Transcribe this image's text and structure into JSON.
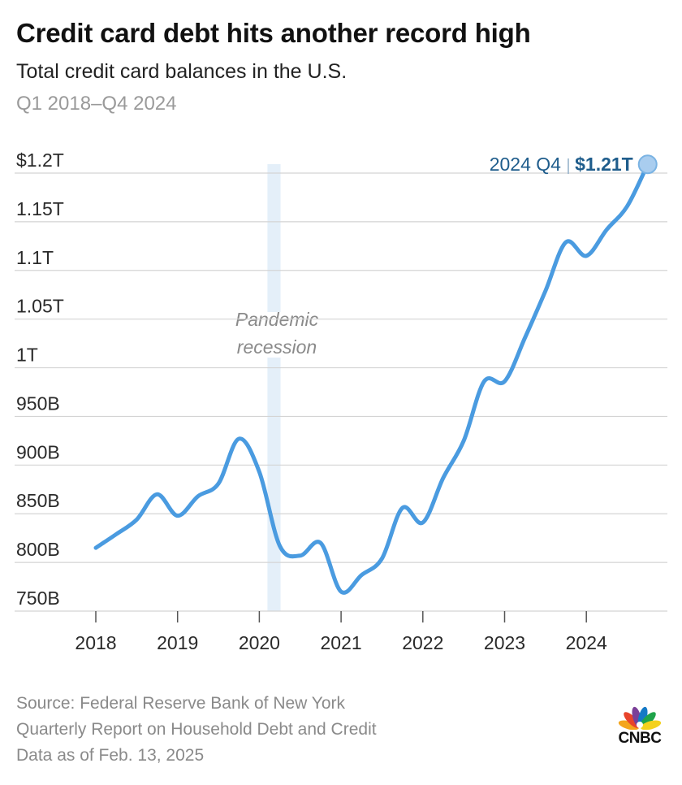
{
  "header": {
    "title": "Credit card debt hits another record high",
    "subtitle": "Total credit card balances in the U.S.",
    "range": "Q1 2018–Q4 2024"
  },
  "footer": {
    "source": "Source: Federal Reserve Bank of New York",
    "report": "Quarterly Report on Household Debt and Credit",
    "asof": "Data as of Feb. 13, 2025"
  },
  "logo": {
    "text": "CNBC",
    "icon": "cnbc-peacock-icon"
  },
  "colors": {
    "line": "#4a9be0",
    "recession_band": "#e4eff9",
    "grid": "#d4d4d4",
    "annotation": "#1f5d8c",
    "muted_text": "#8a8a8a"
  },
  "chart_data": {
    "type": "line",
    "series": [
      {
        "values": [
          {
            "x": "2018 Q1",
            "y": 815
          },
          {
            "x": "2018 Q2",
            "y": 829
          },
          {
            "x": "2018 Q3",
            "y": 844
          },
          {
            "x": "2018 Q4",
            "y": 870
          },
          {
            "x": "2019 Q1",
            "y": 848
          },
          {
            "x": "2019 Q2",
            "y": 868
          },
          {
            "x": "2019 Q3",
            "y": 881
          },
          {
            "x": "2019 Q4",
            "y": 927
          },
          {
            "x": "2020 Q1",
            "y": 893
          },
          {
            "x": "2020 Q2",
            "y": 817
          },
          {
            "x": "2020 Q3",
            "y": 807
          },
          {
            "x": "2020 Q4",
            "y": 820
          },
          {
            "x": "2021 Q1",
            "y": 770
          },
          {
            "x": "2021 Q2",
            "y": 787
          },
          {
            "x": "2021 Q3",
            "y": 804
          },
          {
            "x": "2021 Q4",
            "y": 856
          },
          {
            "x": "2022 Q1",
            "y": 841
          },
          {
            "x": "2022 Q2",
            "y": 887
          },
          {
            "x": "2022 Q3",
            "y": 925
          },
          {
            "x": "2022 Q4",
            "y": 986
          },
          {
            "x": "2023 Q1",
            "y": 986
          },
          {
            "x": "2023 Q2",
            "y": 1031
          },
          {
            "x": "2023 Q3",
            "y": 1079
          },
          {
            "x": "2023 Q4",
            "y": 1129
          },
          {
            "x": "2024 Q1",
            "y": 1115
          },
          {
            "x": "2024 Q2",
            "y": 1142
          },
          {
            "x": "2024 Q3",
            "y": 1166
          },
          {
            "x": "2024 Q4",
            "y": 1209
          }
        ]
      }
    ],
    "y_ticks": [
      {
        "value": 750,
        "label": "750B"
      },
      {
        "value": 800,
        "label": "800B"
      },
      {
        "value": 850,
        "label": "850B"
      },
      {
        "value": 900,
        "label": "900B"
      },
      {
        "value": 950,
        "label": "950B"
      },
      {
        "value": 1000,
        "label": "1T"
      },
      {
        "value": 1050,
        "label": "1.05T"
      },
      {
        "value": 1100,
        "label": "1.1T"
      },
      {
        "value": 1150,
        "label": "1.15T"
      },
      {
        "value": 1200,
        "label": "$1.2T"
      }
    ],
    "x_ticks": [
      "2018",
      "2019",
      "2020",
      "2021",
      "2022",
      "2023",
      "2024"
    ],
    "ylim": [
      750,
      1200
    ],
    "y_units": "billions of dollars",
    "grid": true,
    "shaded_region": {
      "from": "2020 Q1",
      "to": "2020 Q2",
      "label_line1": "Pandemic",
      "label_line2": "recession"
    },
    "annotation": {
      "point": "2024 Q4",
      "label": "2024 Q4",
      "value": "$1.21T"
    }
  }
}
